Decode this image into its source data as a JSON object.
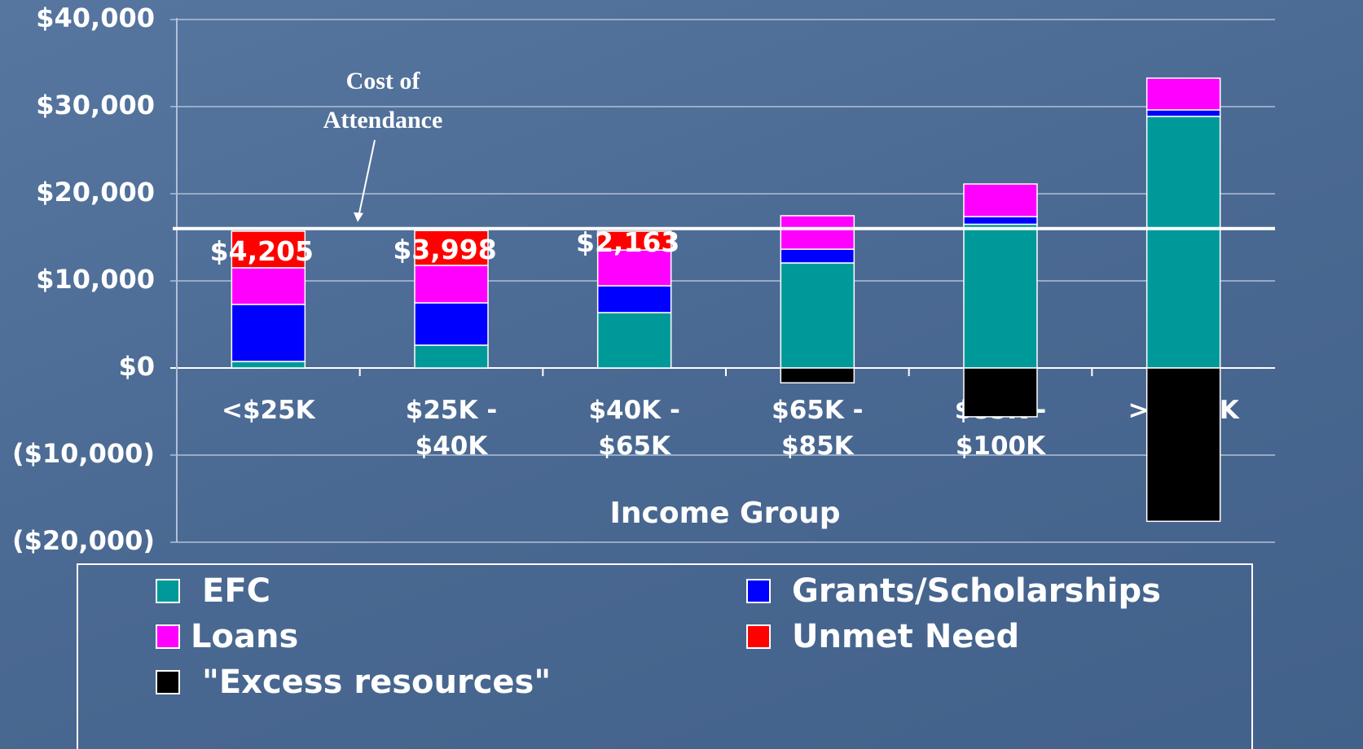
{
  "chart_data": {
    "type": "stacked-bar",
    "x_label": "Income Group",
    "categories": [
      "<$25K",
      "$25K - $40K",
      "$40K - $65K",
      "$65K - $85K",
      "$85K - $100K",
      ">$100K"
    ],
    "series": [
      {
        "name": "EFC",
        "color": "#009999",
        "values": [
          750,
          2620,
          6360,
          12060,
          16500,
          28880
        ]
      },
      {
        "name": "Grants/Scholarships",
        "color": "#0000ff",
        "values": [
          6550,
          4860,
          3080,
          1580,
          880,
          750
        ]
      },
      {
        "name": "Loans",
        "color": "#ff00ff",
        "values": [
          4200,
          4300,
          4100,
          3840,
          3740,
          3640
        ]
      },
      {
        "name": "Unmet Need",
        "color": "#ff0000",
        "values": [
          4205,
          3998,
          2163,
          null,
          null,
          null
        ],
        "value_labels": [
          "$4,205",
          "$3,998",
          "$2,163",
          null,
          null,
          null
        ]
      },
      {
        "name": "\"Excess resources\"",
        "color": "#000000",
        "values": [
          null,
          null,
          null,
          -1700,
          -5600,
          -17600
        ]
      }
    ],
    "reference_line": {
      "label": "Cost of Attendance",
      "value": 16000
    },
    "ylim": [
      -20000,
      40000
    ],
    "yticks": [
      {
        "value": 40000,
        "label": "$40,000"
      },
      {
        "value": 30000,
        "label": "$30,000"
      },
      {
        "value": 20000,
        "label": "$20,000"
      },
      {
        "value": 10000,
        "label": "$10,000"
      },
      {
        "value": 0,
        "label": "$0"
      },
      {
        "value": -10000,
        "label": "($10,000)"
      },
      {
        "value": -20000,
        "label": "($20,000)"
      }
    ],
    "grid": true,
    "legend": "bottom"
  }
}
